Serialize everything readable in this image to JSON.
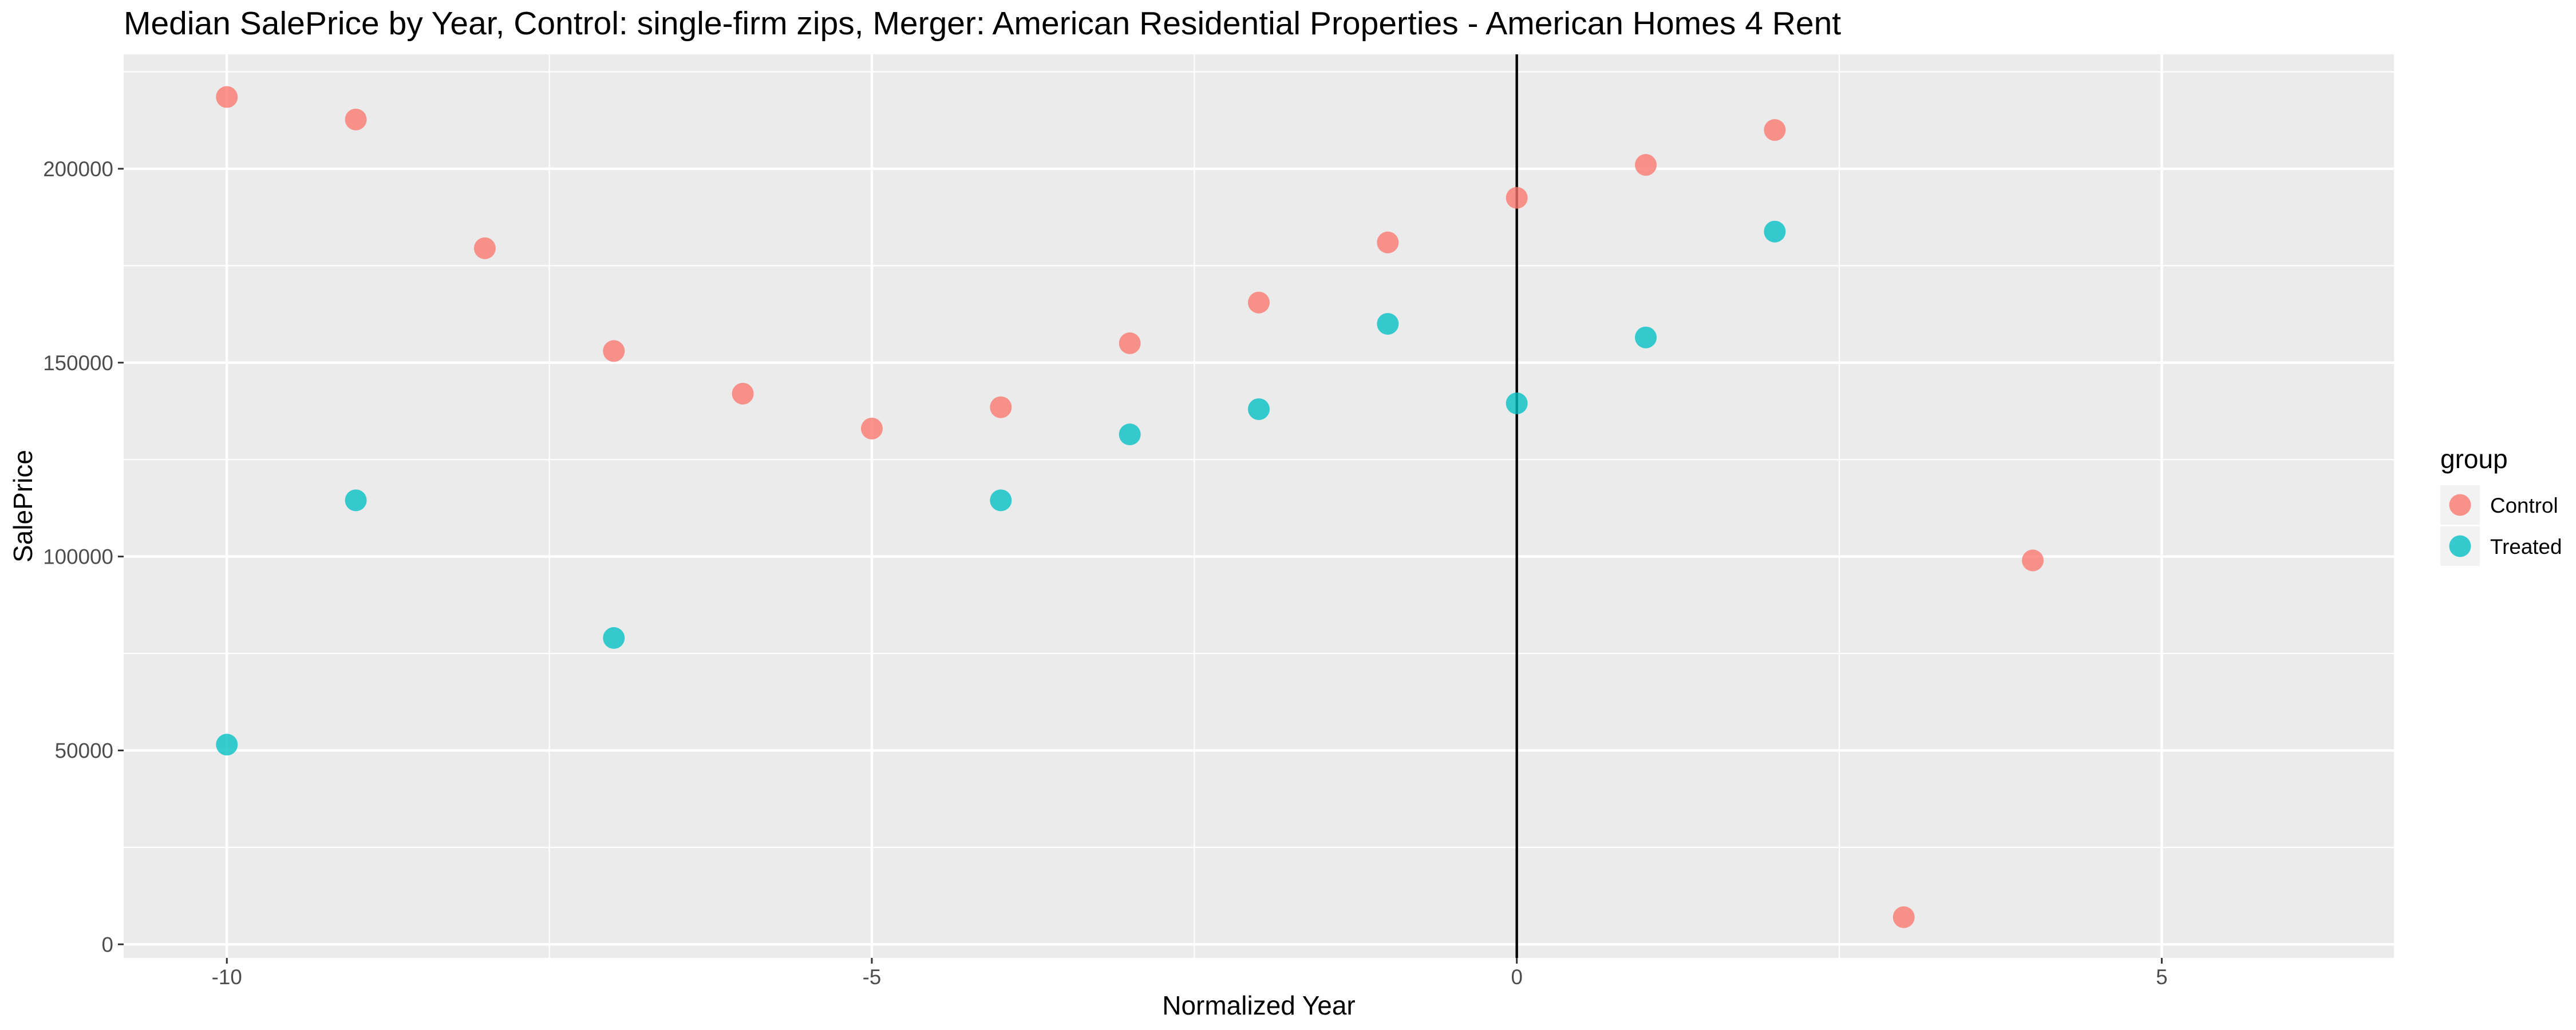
{
  "chart_data": {
    "type": "scatter",
    "title": "Median SalePrice by Year, Control: single-firm zips, Merger: American Residential Properties - American Homes 4 Rent",
    "xlabel": "Normalized Year",
    "ylabel": "SalePrice",
    "xlim": [
      -10.8,
      6.8
    ],
    "ylim": [
      -3500,
      229500
    ],
    "x_ticks": [
      -10,
      -5,
      0,
      5
    ],
    "x_tick_labels": [
      "-10",
      "-5",
      "0",
      "5"
    ],
    "y_ticks": [
      0,
      50000,
      100000,
      150000,
      200000
    ],
    "y_tick_labels": [
      "0",
      "50000",
      "100000",
      "150000",
      "200000"
    ],
    "grid": true,
    "background": "#ebebeb",
    "vline_x": 0,
    "legend": {
      "title": "group",
      "position": "right"
    },
    "series": [
      {
        "name": "Control",
        "color": "#f8766d",
        "points": [
          {
            "x": -10,
            "y": 218500
          },
          {
            "x": -9,
            "y": 212700
          },
          {
            "x": -8,
            "y": 179500
          },
          {
            "x": -7,
            "y": 153000
          },
          {
            "x": -6,
            "y": 142000
          },
          {
            "x": -5,
            "y": 133000
          },
          {
            "x": -4,
            "y": 138500
          },
          {
            "x": -3,
            "y": 155000
          },
          {
            "x": -2,
            "y": 165500
          },
          {
            "x": -1,
            "y": 181000
          },
          {
            "x": 0,
            "y": 192500
          },
          {
            "x": 1,
            "y": 201000
          },
          {
            "x": 2,
            "y": 210000
          },
          {
            "x": 3,
            "y": 7000
          },
          {
            "x": 4,
            "y": 99000
          }
        ]
      },
      {
        "name": "Treated",
        "color": "#00bfc4",
        "points": [
          {
            "x": -10,
            "y": 51500
          },
          {
            "x": -9,
            "y": 114500
          },
          {
            "x": -7,
            "y": 79000
          },
          {
            "x": -4,
            "y": 114500
          },
          {
            "x": -3,
            "y": 131500
          },
          {
            "x": -2,
            "y": 138000
          },
          {
            "x": -1,
            "y": 160000
          },
          {
            "x": 0,
            "y": 139500
          },
          {
            "x": 1,
            "y": 156500
          },
          {
            "x": 2,
            "y": 183800
          }
        ]
      }
    ]
  }
}
